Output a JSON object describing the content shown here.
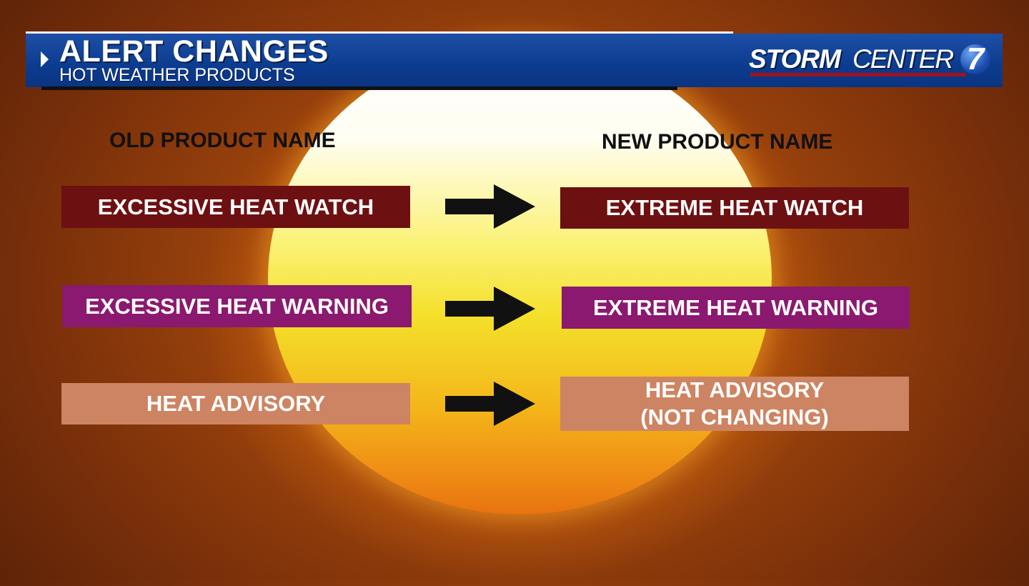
{
  "header": {
    "title": "ALERT CHANGES",
    "subtitle": "HOT WEATHER PRODUCTS"
  },
  "logo": {
    "text_bold": "STORM",
    "text_light": "CENTER",
    "number": "7"
  },
  "columns": {
    "old": "OLD PRODUCT NAME",
    "new": "NEW PRODUCT NAME"
  },
  "rows": [
    {
      "old": "EXCESSIVE HEAT WATCH",
      "new": "EXTREME HEAT WATCH",
      "color": "#6d1012"
    },
    {
      "old": "EXCESSIVE HEAT WARNING",
      "new": "EXTREME HEAT WARNING",
      "color": "#8a196f"
    },
    {
      "old": "HEAT ADVISORY",
      "new": "HEAT ADVISORY",
      "new_note": "(NOT CHANGING)",
      "color": "#cd8462"
    }
  ],
  "colors": {
    "header_blue": "#0c3c8f",
    "logo_red": "#a3121c"
  }
}
